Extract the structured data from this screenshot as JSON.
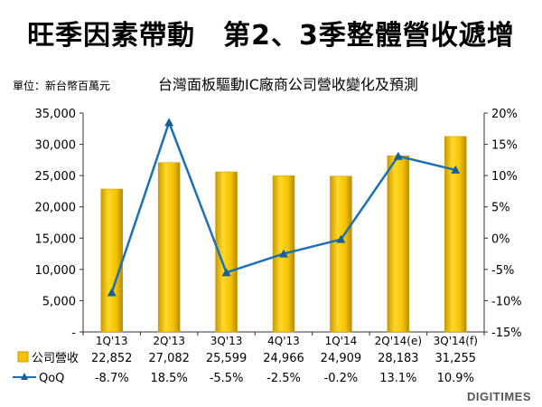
{
  "title": "旺季因素帶動　第2、3季整體營收遞增",
  "unit_label": "單位：新台幣百萬元",
  "logo": "DIGITIMES",
  "chart_data": {
    "type": "bar",
    "title": "台灣面板驅動IC廠商公司營收變化及預測",
    "categories": [
      "1Q'13",
      "2Q'13",
      "3Q'13",
      "4Q'13",
      "1Q'14",
      "2Q'14(e)",
      "3Q'14(f)"
    ],
    "series": [
      {
        "name": "公司營收",
        "type": "bar",
        "axis": "left",
        "color": "#f5c200",
        "values": [
          22852,
          27082,
          25599,
          24966,
          24909,
          28183,
          31255
        ],
        "labels": [
          "22,852",
          "27,082",
          "25,599",
          "24,966",
          "24,909",
          "28,183",
          "31,255"
        ]
      },
      {
        "name": "QoQ",
        "type": "line",
        "axis": "right",
        "color": "#1f6fb4",
        "values": [
          -8.7,
          18.5,
          -5.5,
          -2.5,
          -0.2,
          13.1,
          10.9
        ],
        "labels": [
          "-8.7%",
          "18.5%",
          "-5.5%",
          "-2.5%",
          "-0.2%",
          "13.1%",
          "10.9%"
        ]
      }
    ],
    "y_left": {
      "lim": [
        0,
        35000
      ],
      "ticks": [
        0,
        5000,
        10000,
        15000,
        20000,
        25000,
        30000,
        35000
      ],
      "tick_labels": [
        "-",
        "5,000",
        "10,000",
        "15,000",
        "20,000",
        "25,000",
        "30,000",
        "35,000"
      ]
    },
    "y_right": {
      "lim": [
        -15,
        20
      ],
      "ticks": [
        -15,
        -10,
        -5,
        0,
        5,
        10,
        15,
        20
      ],
      "tick_labels": [
        "-15%",
        "-10%",
        "-5%",
        "0%",
        "5%",
        "10%",
        "15%",
        "20%"
      ]
    },
    "grid": false,
    "legend": "data-table"
  }
}
